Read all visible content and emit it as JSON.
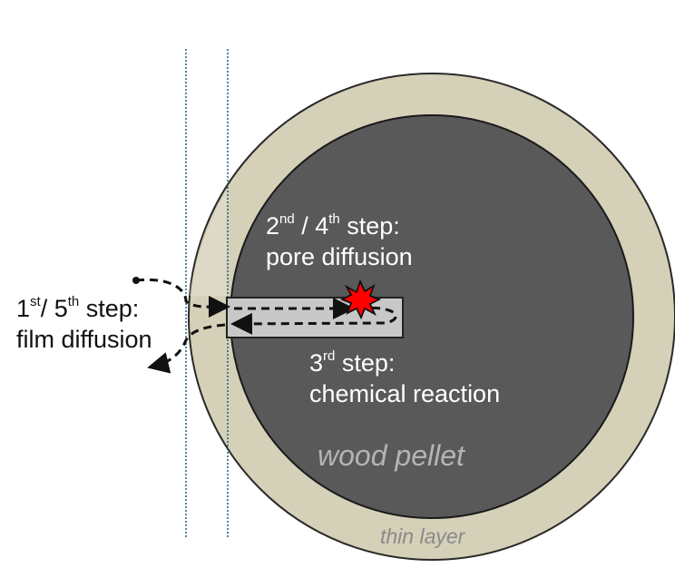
{
  "labels": {
    "step1_sup_a": "st",
    "step1_mid": "/ 5",
    "step1_sup_b": "th",
    "step1_tail": " step:",
    "step1_line2": "film diffusion",
    "step2_sup_a": "nd",
    "step2_mid": " / 4",
    "step2_sup_b": "th",
    "step2_tail": " step:",
    "step2_line2": "pore diffusion",
    "step3_sup": "rd",
    "step3_tail": " step:",
    "step3_line2": "chemical reaction",
    "pellet": "wood pellet",
    "thin_layer": "thin layer"
  },
  "colors": {
    "outer_layer": "#d5d0b8",
    "pellet_core": "#595959",
    "pore": "#c8c8c8",
    "reaction_burst": "#ff0000",
    "guide_lines": "#1f5f7a"
  },
  "icons": {
    "reaction": "explosion-burst-icon"
  }
}
